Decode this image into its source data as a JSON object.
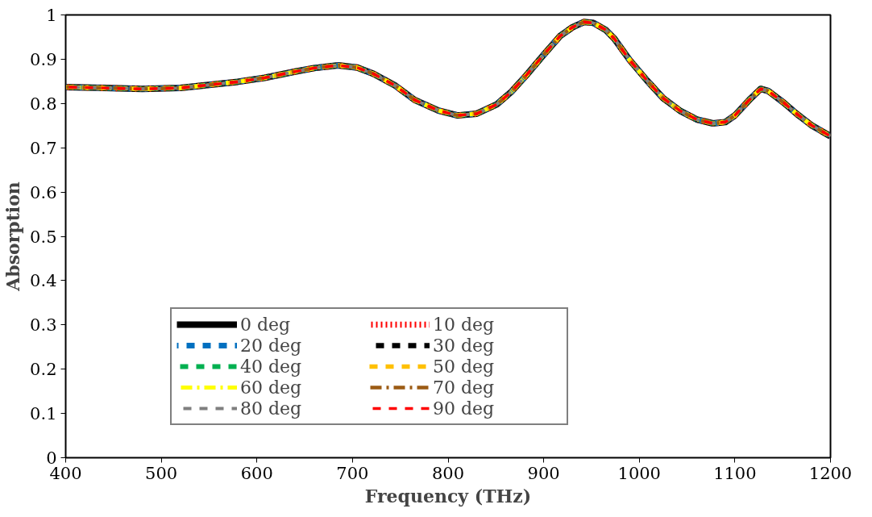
{
  "chart_data": {
    "type": "line",
    "xlabel": "Frequency (THz)",
    "ylabel": "Absorption",
    "x": [
      400,
      440,
      480,
      520,
      550,
      580,
      608,
      640,
      660,
      685,
      705,
      722,
      745,
      765,
      790,
      810,
      830,
      851,
      866,
      882,
      900,
      917,
      930,
      942,
      952,
      965,
      974,
      990,
      1008,
      1025,
      1043,
      1060,
      1077,
      1090,
      1100,
      1115,
      1127,
      1135,
      1151,
      1165,
      1180,
      1200
    ],
    "xlim": [
      400,
      1200
    ],
    "xticks": [
      400,
      500,
      600,
      700,
      800,
      900,
      1000,
      1100,
      1200
    ],
    "ylim": [
      0,
      1
    ],
    "yticks": [
      0,
      0.1,
      0.2,
      0.3,
      0.4,
      0.5,
      0.6,
      0.7,
      0.8,
      0.9,
      1
    ],
    "grid": false,
    "legend": "bottom",
    "marker": "none",
    "series": [
      {
        "name": "0 deg",
        "color": "#000000",
        "line_style": "solid",
        "values": [
          0.837,
          0.835,
          0.833,
          0.835,
          0.842,
          0.849,
          0.858,
          0.872,
          0.88,
          0.886,
          0.881,
          0.867,
          0.84,
          0.808,
          0.784,
          0.773,
          0.777,
          0.798,
          0.826,
          0.864,
          0.91,
          0.952,
          0.972,
          0.984,
          0.982,
          0.966,
          0.946,
          0.898,
          0.852,
          0.812,
          0.783,
          0.764,
          0.755,
          0.758,
          0.773,
          0.808,
          0.833,
          0.828,
          0.802,
          0.776,
          0.751,
          0.726
        ]
      },
      {
        "name": "10 deg",
        "color": "#ff0000",
        "line_style": "dotted",
        "values": [
          0.837,
          0.835,
          0.833,
          0.835,
          0.842,
          0.849,
          0.858,
          0.872,
          0.88,
          0.886,
          0.881,
          0.867,
          0.84,
          0.808,
          0.784,
          0.773,
          0.777,
          0.798,
          0.826,
          0.864,
          0.91,
          0.952,
          0.972,
          0.984,
          0.982,
          0.966,
          0.946,
          0.898,
          0.852,
          0.812,
          0.783,
          0.764,
          0.755,
          0.758,
          0.773,
          0.808,
          0.833,
          0.828,
          0.802,
          0.776,
          0.751,
          0.726
        ]
      },
      {
        "name": "20 deg",
        "color": "#0070c0",
        "line_style": "dashed",
        "values": [
          0.837,
          0.835,
          0.833,
          0.835,
          0.842,
          0.849,
          0.858,
          0.872,
          0.88,
          0.886,
          0.881,
          0.867,
          0.84,
          0.808,
          0.784,
          0.773,
          0.777,
          0.798,
          0.826,
          0.864,
          0.91,
          0.952,
          0.972,
          0.984,
          0.982,
          0.966,
          0.946,
          0.898,
          0.852,
          0.812,
          0.783,
          0.764,
          0.755,
          0.758,
          0.773,
          0.808,
          0.833,
          0.828,
          0.802,
          0.776,
          0.751,
          0.726
        ]
      },
      {
        "name": "30 deg",
        "color": "#000000",
        "line_style": "dashed",
        "values": [
          0.837,
          0.835,
          0.833,
          0.835,
          0.842,
          0.849,
          0.858,
          0.872,
          0.88,
          0.886,
          0.881,
          0.867,
          0.84,
          0.808,
          0.784,
          0.773,
          0.777,
          0.798,
          0.826,
          0.864,
          0.91,
          0.952,
          0.972,
          0.984,
          0.982,
          0.966,
          0.946,
          0.898,
          0.852,
          0.812,
          0.783,
          0.764,
          0.755,
          0.758,
          0.773,
          0.808,
          0.833,
          0.828,
          0.802,
          0.776,
          0.751,
          0.726
        ]
      },
      {
        "name": "40 deg",
        "color": "#00b050",
        "line_style": "dashed",
        "values": [
          0.837,
          0.835,
          0.833,
          0.835,
          0.842,
          0.849,
          0.858,
          0.872,
          0.88,
          0.886,
          0.881,
          0.867,
          0.84,
          0.808,
          0.784,
          0.773,
          0.777,
          0.798,
          0.826,
          0.864,
          0.91,
          0.952,
          0.972,
          0.984,
          0.982,
          0.966,
          0.946,
          0.898,
          0.852,
          0.812,
          0.783,
          0.764,
          0.755,
          0.758,
          0.773,
          0.808,
          0.833,
          0.828,
          0.802,
          0.776,
          0.751,
          0.726
        ]
      },
      {
        "name": "50 deg",
        "color": "#ffc000",
        "line_style": "dashed",
        "values": [
          0.837,
          0.835,
          0.833,
          0.835,
          0.842,
          0.849,
          0.858,
          0.872,
          0.88,
          0.886,
          0.881,
          0.867,
          0.84,
          0.808,
          0.784,
          0.773,
          0.777,
          0.798,
          0.826,
          0.864,
          0.91,
          0.952,
          0.972,
          0.984,
          0.982,
          0.966,
          0.946,
          0.898,
          0.852,
          0.812,
          0.783,
          0.764,
          0.755,
          0.758,
          0.773,
          0.808,
          0.833,
          0.828,
          0.802,
          0.776,
          0.751,
          0.726
        ]
      },
      {
        "name": "60 deg",
        "color": "#ffff00",
        "line_style": "dashdot",
        "values": [
          0.837,
          0.835,
          0.833,
          0.835,
          0.842,
          0.849,
          0.858,
          0.872,
          0.88,
          0.886,
          0.881,
          0.867,
          0.84,
          0.808,
          0.784,
          0.773,
          0.777,
          0.798,
          0.826,
          0.864,
          0.91,
          0.952,
          0.972,
          0.984,
          0.982,
          0.966,
          0.946,
          0.898,
          0.852,
          0.812,
          0.783,
          0.764,
          0.755,
          0.758,
          0.773,
          0.808,
          0.833,
          0.828,
          0.802,
          0.776,
          0.751,
          0.726
        ]
      },
      {
        "name": "70 deg",
        "color": "#9c5b14",
        "line_style": "dashdot",
        "values": [
          0.837,
          0.835,
          0.833,
          0.835,
          0.842,
          0.849,
          0.858,
          0.872,
          0.88,
          0.886,
          0.881,
          0.867,
          0.84,
          0.808,
          0.784,
          0.773,
          0.777,
          0.798,
          0.826,
          0.864,
          0.91,
          0.952,
          0.972,
          0.984,
          0.982,
          0.966,
          0.946,
          0.898,
          0.852,
          0.812,
          0.783,
          0.764,
          0.755,
          0.758,
          0.773,
          0.808,
          0.833,
          0.828,
          0.802,
          0.776,
          0.751,
          0.726
        ]
      },
      {
        "name": "80 deg",
        "color": "#7f7f7f",
        "line_style": "dashed",
        "values": [
          0.837,
          0.835,
          0.833,
          0.835,
          0.842,
          0.849,
          0.858,
          0.872,
          0.88,
          0.886,
          0.881,
          0.867,
          0.84,
          0.808,
          0.784,
          0.773,
          0.777,
          0.798,
          0.826,
          0.864,
          0.91,
          0.952,
          0.972,
          0.984,
          0.982,
          0.966,
          0.946,
          0.898,
          0.852,
          0.812,
          0.783,
          0.764,
          0.755,
          0.758,
          0.773,
          0.808,
          0.833,
          0.828,
          0.802,
          0.776,
          0.751,
          0.726
        ]
      },
      {
        "name": "90 deg",
        "color": "#ff0000",
        "line_style": "dashed",
        "values": [
          0.837,
          0.835,
          0.833,
          0.835,
          0.842,
          0.849,
          0.858,
          0.872,
          0.88,
          0.886,
          0.881,
          0.867,
          0.84,
          0.808,
          0.784,
          0.773,
          0.777,
          0.798,
          0.826,
          0.864,
          0.91,
          0.952,
          0.972,
          0.984,
          0.982,
          0.966,
          0.946,
          0.898,
          0.852,
          0.812,
          0.783,
          0.764,
          0.755,
          0.758,
          0.773,
          0.808,
          0.833,
          0.828,
          0.802,
          0.776,
          0.751,
          0.726
        ]
      }
    ]
  }
}
